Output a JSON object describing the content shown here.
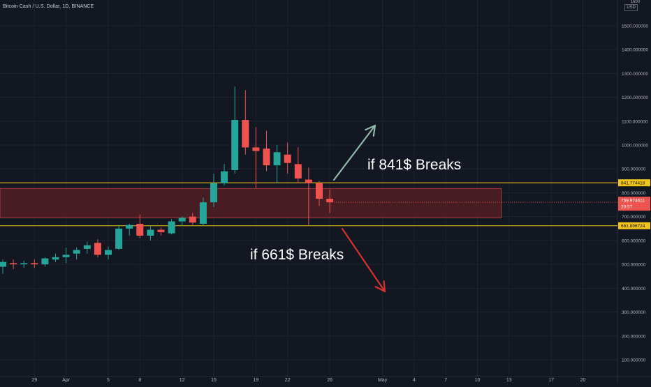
{
  "header": {
    "symbol_title": "Bitcoin Cash / U.S. Dollar, 1D, BINANCE",
    "currency": "USD"
  },
  "colors": {
    "background": "#131722",
    "grid": "#1f2330",
    "up": "#26a69a",
    "down": "#ef5350",
    "level_line": "#f0c419",
    "zone_fill": "#5a1f24",
    "zone_border": "#b23a3a",
    "arrow_up": "#8fb8a8",
    "arrow_down": "#d3332e"
  },
  "chart_data": {
    "type": "candlestick",
    "title": "Bitcoin Cash / U.S. Dollar, 1D, BINANCE",
    "ylim": [
      50,
      1600
    ],
    "y_ticks": [
      100,
      200,
      300,
      400,
      500,
      600,
      700,
      800,
      900,
      1000,
      1100,
      1200,
      1300,
      1400,
      1500
    ],
    "y_tick_labels": [
      "100.000000",
      "200.000000",
      "300.000000",
      "400.000000",
      "500.000000",
      "600.000000",
      "700.000000",
      "800.000000",
      "900.000000",
      "1000.000000",
      "1100.000000",
      "1200.000000",
      "1300.000000",
      "1400.000000",
      "1500.000000"
    ],
    "y_top_label": "1600",
    "x_ticks": [
      {
        "label": "29",
        "index": 3
      },
      {
        "label": "Apr",
        "index": 6
      },
      {
        "label": "5",
        "index": 10
      },
      {
        "label": "8",
        "index": 13
      },
      {
        "label": "12",
        "index": 17
      },
      {
        "label": "15",
        "index": 20
      },
      {
        "label": "19",
        "index": 24
      },
      {
        "label": "22",
        "index": 27
      },
      {
        "label": "26",
        "index": 31
      },
      {
        "label": "May",
        "index": 36
      },
      {
        "label": "4",
        "index": 39
      },
      {
        "label": "7",
        "index": 42
      },
      {
        "label": "10",
        "index": 45
      },
      {
        "label": "13",
        "index": 48
      },
      {
        "label": "17",
        "index": 52
      },
      {
        "label": "20",
        "index": 55
      }
    ],
    "candles": [
      {
        "i": 0,
        "o": 490,
        "h": 520,
        "l": 460,
        "c": 510
      },
      {
        "i": 1,
        "o": 505,
        "h": 520,
        "l": 480,
        "c": 500
      },
      {
        "i": 2,
        "o": 500,
        "h": 515,
        "l": 485,
        "c": 505
      },
      {
        "i": 3,
        "o": 505,
        "h": 520,
        "l": 485,
        "c": 500
      },
      {
        "i": 4,
        "o": 500,
        "h": 530,
        "l": 490,
        "c": 525
      },
      {
        "i": 5,
        "o": 520,
        "h": 545,
        "l": 510,
        "c": 530
      },
      {
        "i": 6,
        "o": 530,
        "h": 570,
        "l": 505,
        "c": 540
      },
      {
        "i": 7,
        "o": 545,
        "h": 570,
        "l": 520,
        "c": 560
      },
      {
        "i": 8,
        "o": 565,
        "h": 595,
        "l": 545,
        "c": 580
      },
      {
        "i": 9,
        "o": 590,
        "h": 605,
        "l": 530,
        "c": 540
      },
      {
        "i": 10,
        "o": 540,
        "h": 575,
        "l": 520,
        "c": 560
      },
      {
        "i": 11,
        "o": 565,
        "h": 665,
        "l": 560,
        "c": 650
      },
      {
        "i": 12,
        "o": 650,
        "h": 670,
        "l": 620,
        "c": 665
      },
      {
        "i": 13,
        "o": 670,
        "h": 710,
        "l": 610,
        "c": 620
      },
      {
        "i": 14,
        "o": 620,
        "h": 660,
        "l": 600,
        "c": 645
      },
      {
        "i": 15,
        "o": 645,
        "h": 655,
        "l": 620,
        "c": 635
      },
      {
        "i": 16,
        "o": 630,
        "h": 690,
        "l": 625,
        "c": 680
      },
      {
        "i": 17,
        "o": 680,
        "h": 700,
        "l": 660,
        "c": 695
      },
      {
        "i": 18,
        "o": 700,
        "h": 715,
        "l": 665,
        "c": 675
      },
      {
        "i": 19,
        "o": 670,
        "h": 780,
        "l": 660,
        "c": 760
      },
      {
        "i": 20,
        "o": 760,
        "h": 880,
        "l": 740,
        "c": 840
      },
      {
        "i": 21,
        "o": 840,
        "h": 920,
        "l": 830,
        "c": 890
      },
      {
        "i": 22,
        "o": 895,
        "h": 1245,
        "l": 880,
        "c": 1105
      },
      {
        "i": 23,
        "o": 1105,
        "h": 1230,
        "l": 960,
        "c": 990
      },
      {
        "i": 24,
        "o": 990,
        "h": 1075,
        "l": 820,
        "c": 975
      },
      {
        "i": 25,
        "o": 985,
        "h": 1060,
        "l": 890,
        "c": 915
      },
      {
        "i": 26,
        "o": 915,
        "h": 1000,
        "l": 840,
        "c": 970
      },
      {
        "i": 27,
        "o": 960,
        "h": 1010,
        "l": 880,
        "c": 925
      },
      {
        "i": 28,
        "o": 920,
        "h": 990,
        "l": 840,
        "c": 860
      },
      {
        "i": 29,
        "o": 855,
        "h": 905,
        "l": 665,
        "c": 840
      },
      {
        "i": 30,
        "o": 840,
        "h": 850,
        "l": 745,
        "c": 775
      },
      {
        "i": 31,
        "o": 775,
        "h": 815,
        "l": 715,
        "c": 760
      }
    ],
    "levels": [
      {
        "value": 841.774418,
        "label": "841.774418"
      },
      {
        "value": 661.896724,
        "label": "661.896724"
      }
    ],
    "current_price": {
      "value": 759.974611,
      "label": "759.974611",
      "countdown": "20:57"
    },
    "zone": {
      "from_index": -1,
      "to_index": 47,
      "top": 818,
      "bottom": 695
    },
    "annotations": [
      {
        "text": "if 841$ Breaks"
      },
      {
        "text": "if 661$ Breaks"
      }
    ]
  }
}
